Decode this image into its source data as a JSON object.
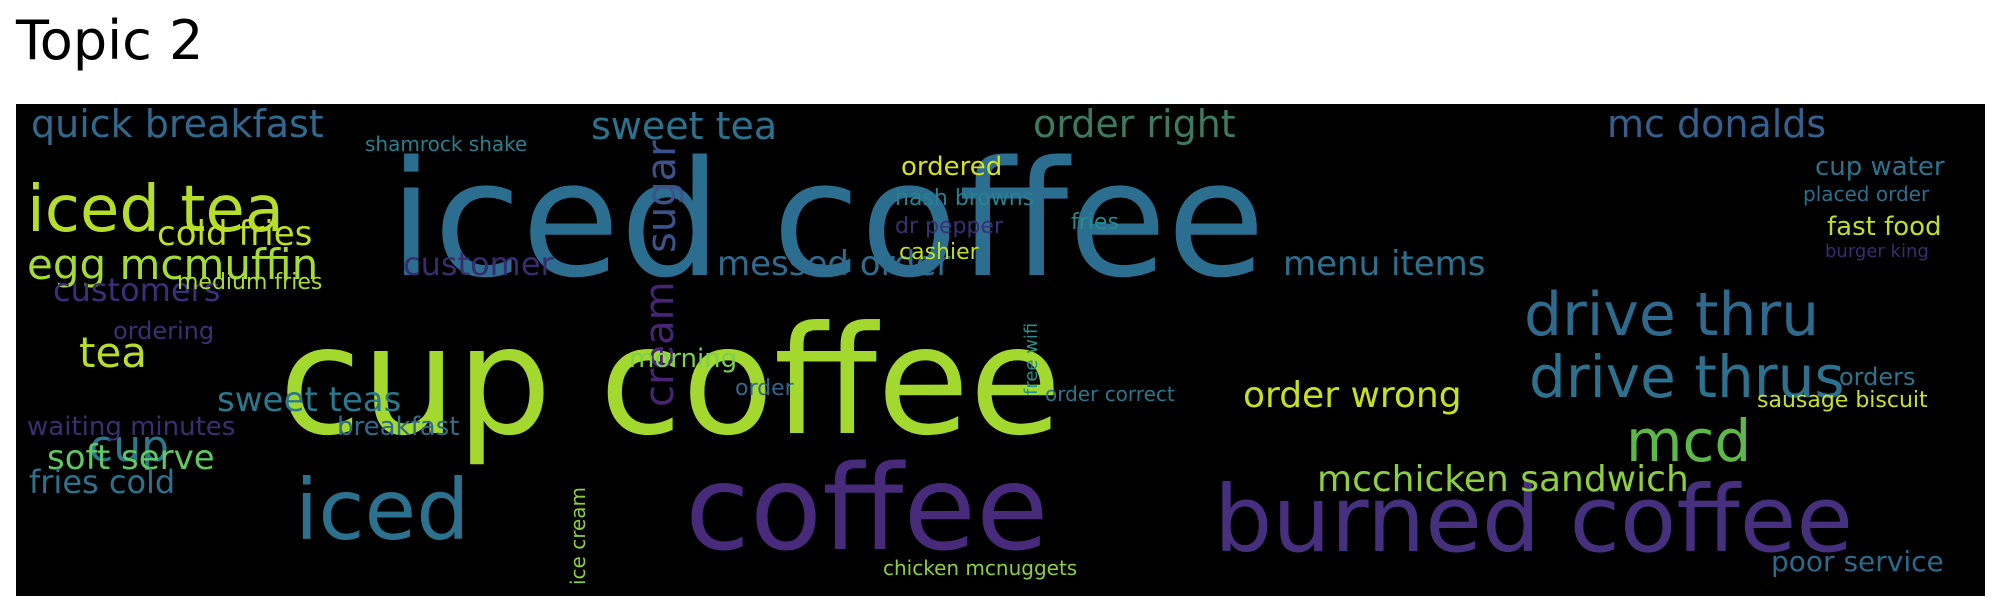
{
  "title": "Topic 2",
  "colors": {
    "background": "#000000",
    "palette": [
      "#440154",
      "#472f7d",
      "#3b518b",
      "#2c728e",
      "#21918c",
      "#28ae80",
      "#5ec962",
      "#addc30",
      "#fde725"
    ]
  },
  "words": [
    {
      "text": "iced coffee",
      "color": "#2c6e8f"
    },
    {
      "text": "cup coffee",
      "color": "#a3d92e"
    },
    {
      "text": "coffee",
      "color": "#472a7a"
    },
    {
      "text": "burned coffee",
      "color": "#46307e"
    },
    {
      "text": "drive thru",
      "color": "#2e6a8e"
    },
    {
      "text": "drive thrus",
      "color": "#2c728e"
    },
    {
      "text": "mcd",
      "color": "#5cb847"
    },
    {
      "text": "iced tea",
      "color": "#b5de2b"
    },
    {
      "text": "iced",
      "color": "#2c728e"
    },
    {
      "text": "cup",
      "color": "#2a788e"
    },
    {
      "text": "egg mcmuffin",
      "color": "#a5db36"
    },
    {
      "text": "quick breakfast",
      "color": "#31688e"
    },
    {
      "text": "sweet tea",
      "color": "#2c728e"
    },
    {
      "text": "order right",
      "color": "#3e7a62"
    },
    {
      "text": "mc donalds",
      "color": "#35608d"
    },
    {
      "text": "cold fries",
      "color": "#c2df23"
    },
    {
      "text": "messed order",
      "color": "#2f6b8e"
    },
    {
      "text": "menu items",
      "color": "#2d708e"
    },
    {
      "text": "sugar",
      "color": "#3b528b"
    },
    {
      "text": "cream",
      "color": "#482475"
    },
    {
      "text": "customer",
      "color": "#3a2a6f"
    },
    {
      "text": "customers",
      "color": "#3e2d7d"
    },
    {
      "text": "tea",
      "color": "#b8de29"
    },
    {
      "text": "order wrong",
      "color": "#c8e020"
    },
    {
      "text": "mcchicken sandwich",
      "color": "#8cd13c"
    },
    {
      "text": "sweet teas",
      "color": "#2a788e"
    },
    {
      "text": "soft serve",
      "color": "#5ec962"
    },
    {
      "text": "fries cold",
      "color": "#2c728e"
    },
    {
      "text": "waiting minutes",
      "color": "#3b2e72"
    },
    {
      "text": "breakfast",
      "color": "#2f6b8e"
    },
    {
      "text": "morning",
      "color": "#7ad151"
    },
    {
      "text": "ordering",
      "color": "#3d2f73"
    },
    {
      "text": "medium fries",
      "color": "#a8db34"
    },
    {
      "text": "shamrock shake",
      "color": "#26818e"
    },
    {
      "text": "ordered",
      "color": "#d5e21a"
    },
    {
      "text": "hash browns",
      "color": "#26828e"
    },
    {
      "text": "dr pepper",
      "color": "#3c2f74"
    },
    {
      "text": "fries",
      "color": "#228c8d"
    },
    {
      "text": "cashier",
      "color": "#c2df23"
    },
    {
      "text": "free wifi",
      "color": "#22928c"
    },
    {
      "text": "order",
      "color": "#31668e"
    },
    {
      "text": "order correct",
      "color": "#2a768e"
    },
    {
      "text": "ice cream",
      "color": "#8cd13c"
    },
    {
      "text": "chicken mcnuggets",
      "color": "#8cd13c"
    },
    {
      "text": "cup water",
      "color": "#2c728e"
    },
    {
      "text": "placed order",
      "color": "#2c6f8e"
    },
    {
      "text": "fast food",
      "color": "#bfdf25"
    },
    {
      "text": "burger king",
      "color": "#3b2b72"
    },
    {
      "text": "orders",
      "color": "#2c738e"
    },
    {
      "text": "sausage biscuit",
      "color": "#c8e020"
    },
    {
      "text": "poor service",
      "color": "#2a6a8d"
    }
  ]
}
